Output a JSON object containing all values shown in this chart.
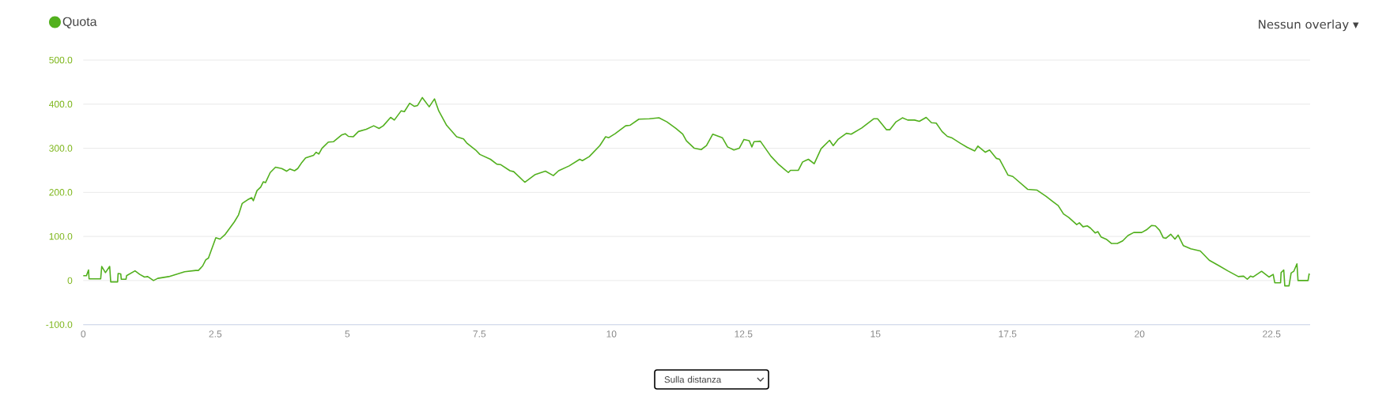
{
  "chart_data": {
    "type": "line",
    "x": [
      0,
      0.06,
      0.1,
      0.11,
      0.33,
      0.35,
      0.42,
      0.5,
      0.52,
      0.65,
      0.66,
      0.71,
      0.72,
      0.81,
      0.82,
      0.98,
      1.07,
      1.16,
      1.22,
      1.33,
      1.41,
      1.62,
      1.92,
      2.13,
      2.18,
      2.26,
      2.32,
      2.37,
      2.51,
      2.59,
      2.69,
      2.86,
      2.94,
      3.01,
      3.11,
      3.19,
      3.22,
      3.29,
      3.36,
      3.41,
      3.45,
      3.54,
      3.64,
      3.76,
      3.85,
      3.91,
      4.0,
      4.06,
      4.14,
      4.21,
      4.36,
      4.41,
      4.46,
      4.52,
      4.64,
      4.74,
      4.89,
      4.96,
      5.02,
      5.11,
      5.21,
      5.36,
      5.5,
      5.6,
      5.68,
      5.82,
      5.89,
      6.02,
      6.08,
      6.18,
      6.27,
      6.33,
      6.42,
      6.55,
      6.65,
      6.73,
      6.88,
      7.07,
      7.2,
      7.26,
      7.43,
      7.51,
      7.71,
      7.83,
      7.9,
      8.08,
      8.15,
      8.36,
      8.55,
      8.75,
      8.9,
      9.0,
      9.2,
      9.4,
      9.45,
      9.58,
      9.78,
      9.89,
      9.95,
      10.07,
      10.27,
      10.35,
      10.52,
      10.72,
      10.9,
      11.05,
      11.22,
      11.35,
      11.42,
      11.57,
      11.7,
      11.8,
      11.92,
      12.1,
      12.2,
      12.32,
      12.42,
      12.51,
      12.61,
      12.66,
      12.7,
      12.82,
      13.02,
      13.17,
      13.27,
      13.35,
      13.39,
      13.54,
      13.62,
      13.73,
      13.84,
      13.97,
      14.13,
      14.2,
      14.29,
      14.45,
      14.54,
      14.74,
      14.97,
      15.04,
      15.21,
      15.27,
      15.39,
      15.51,
      15.61,
      15.74,
      15.83,
      15.96,
      16.06,
      16.15,
      16.26,
      16.36,
      16.44,
      16.61,
      16.74,
      16.88,
      16.94,
      17.08,
      17.16,
      17.29,
      17.35,
      17.51,
      17.6,
      17.88,
      18.06,
      18.23,
      18.36,
      18.46,
      18.56,
      18.66,
      18.81,
      18.86,
      18.93,
      19.01,
      19.07,
      19.16,
      19.21,
      19.27,
      19.38,
      19.47,
      19.58,
      19.68,
      19.78,
      19.89,
      20.04,
      20.13,
      20.23,
      20.3,
      20.38,
      20.45,
      20.5,
      20.59,
      20.67,
      20.73,
      20.83,
      20.97,
      21.15,
      21.32,
      21.5,
      21.67,
      21.87,
      21.97,
      22.04,
      22.1,
      22.15,
      22.31,
      22.45,
      22.53,
      22.56,
      22.67,
      22.68,
      22.73,
      22.75,
      22.83,
      22.87,
      22.92,
      22.98,
      23.0,
      23.19,
      23.21,
      23.22
    ],
    "series": [
      {
        "name": "Quota",
        "color": "#52b01e",
        "values": [
          11,
          11,
          24,
          4,
          4,
          32,
          18,
          32,
          -3,
          -3,
          16,
          15,
          3,
          3,
          11,
          22,
          14,
          8,
          9,
          0,
          5,
          9,
          20,
          23,
          23,
          33,
          47,
          51,
          97,
          94,
          105,
          133,
          149,
          175,
          183,
          188,
          181,
          204,
          212,
          224,
          222,
          245,
          257,
          254,
          248,
          253,
          249,
          254,
          268,
          278,
          284,
          291,
          287,
          300,
          314,
          315,
          330,
          333,
          327,
          326,
          338,
          343,
          351,
          345,
          351,
          370,
          364,
          385,
          383,
          402,
          395,
          397,
          415,
          394,
          412,
          385,
          352,
          326,
          321,
          312,
          296,
          286,
          275,
          264,
          263,
          249,
          247,
          223,
          240,
          248,
          238,
          249,
          260,
          275,
          272,
          281,
          306,
          326,
          324,
          333,
          351,
          352,
          366,
          367,
          369,
          360,
          345,
          332,
          317,
          300,
          297,
          306,
          332,
          324,
          303,
          296,
          300,
          320,
          317,
          303,
          315,
          316,
          282,
          263,
          253,
          245,
          250,
          250,
          269,
          275,
          265,
          299,
          318,
          306,
          320,
          334,
          332,
          346,
          367,
          367,
          342,
          342,
          360,
          369,
          364,
          364,
          361,
          370,
          358,
          357,
          338,
          327,
          324,
          311,
          302,
          294,
          305,
          291,
          296,
          277,
          275,
          239,
          236,
          207,
          205,
          191,
          179,
          170,
          151,
          143,
          127,
          131,
          122,
          124,
          119,
          108,
          111,
          99,
          93,
          84,
          84,
          90,
          102,
          109,
          109,
          115,
          125,
          124,
          114,
          97,
          96,
          105,
          94,
          103,
          79,
          72,
          67,
          46,
          34,
          22,
          9,
          10,
          3,
          10,
          8,
          21,
          8,
          14,
          -5,
          -5,
          18,
          24,
          -12,
          -12,
          17,
          21,
          38,
          0,
          0,
          15,
          13
        ]
      }
    ],
    "xlim": [
      0,
      23.23
    ],
    "ylim": [
      -100,
      500
    ],
    "xticks": [
      0,
      2.5,
      5,
      7.5,
      10,
      12.5,
      15,
      17.5,
      20,
      22.5
    ],
    "yticks": [
      {
        "value": -100,
        "label": "-100.0"
      },
      0,
      {
        "value": 100,
        "label": "100.0"
      },
      {
        "value": 200,
        "label": "200.0"
      },
      {
        "value": 300,
        "label": "300.0"
      },
      {
        "value": 400,
        "label": "400.0"
      },
      {
        "value": 500,
        "label": "500.0"
      }
    ],
    "grid": "y",
    "legend": "top left",
    "annotations": [
      "Nessun overlay ▾",
      "Sulla distanza"
    ]
  }
}
